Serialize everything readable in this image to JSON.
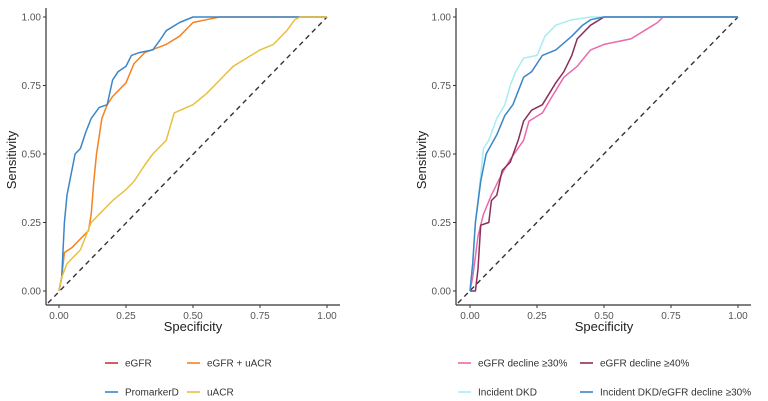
{
  "chart_data": [
    {
      "type": "line",
      "xlabel": "Specificity",
      "ylabel": "Sensitivity",
      "xlim": [
        0,
        1
      ],
      "ylim": [
        0,
        1
      ],
      "xticks": [
        "0.00",
        "0.25",
        "0.50",
        "0.75",
        "1.00"
      ],
      "yticks": [
        "0.00",
        "0.25",
        "0.50",
        "0.75",
        "1.00"
      ],
      "grid": false,
      "legend_position": "bottom",
      "reference_line": "diagonal dashed",
      "series": [
        {
          "name": "eGFR",
          "color": "#c8373a",
          "points": []
        },
        {
          "name": "eGFR + uACR",
          "color": "#f5821f",
          "points": [
            [
              0,
              0
            ],
            [
              0.01,
              0.05
            ],
            [
              0.02,
              0.14
            ],
            [
              0.05,
              0.16
            ],
            [
              0.08,
              0.19
            ],
            [
              0.11,
              0.22
            ],
            [
              0.12,
              0.28
            ],
            [
              0.13,
              0.4
            ],
            [
              0.14,
              0.5
            ],
            [
              0.16,
              0.63
            ],
            [
              0.18,
              0.68
            ],
            [
              0.2,
              0.71
            ],
            [
              0.25,
              0.76
            ],
            [
              0.28,
              0.83
            ],
            [
              0.32,
              0.87
            ],
            [
              0.4,
              0.9
            ],
            [
              0.45,
              0.93
            ],
            [
              0.5,
              0.98
            ],
            [
              0.55,
              0.99
            ],
            [
              0.6,
              1
            ],
            [
              1,
              1
            ]
          ]
        },
        {
          "name": "PromarkerD",
          "color": "#3b86c8",
          "points": [
            [
              0,
              0
            ],
            [
              0.01,
              0.05
            ],
            [
              0.02,
              0.25
            ],
            [
              0.03,
              0.35
            ],
            [
              0.05,
              0.45
            ],
            [
              0.06,
              0.5
            ],
            [
              0.08,
              0.52
            ],
            [
              0.1,
              0.58
            ],
            [
              0.12,
              0.63
            ],
            [
              0.15,
              0.67
            ],
            [
              0.18,
              0.68
            ],
            [
              0.2,
              0.77
            ],
            [
              0.22,
              0.8
            ],
            [
              0.25,
              0.82
            ],
            [
              0.27,
              0.86
            ],
            [
              0.3,
              0.87
            ],
            [
              0.35,
              0.88
            ],
            [
              0.38,
              0.92
            ],
            [
              0.4,
              0.95
            ],
            [
              0.45,
              0.98
            ],
            [
              0.5,
              1
            ],
            [
              1,
              1
            ]
          ]
        },
        {
          "name": "uACR",
          "color": "#e8c040",
          "points": [
            [
              0,
              0
            ],
            [
              0.01,
              0.05
            ],
            [
              0.03,
              0.1
            ],
            [
              0.08,
              0.15
            ],
            [
              0.12,
              0.25
            ],
            [
              0.15,
              0.28
            ],
            [
              0.2,
              0.33
            ],
            [
              0.25,
              0.37
            ],
            [
              0.28,
              0.4
            ],
            [
              0.32,
              0.46
            ],
            [
              0.35,
              0.5
            ],
            [
              0.4,
              0.55
            ],
            [
              0.43,
              0.65
            ],
            [
              0.5,
              0.68
            ],
            [
              0.55,
              0.72
            ],
            [
              0.6,
              0.77
            ],
            [
              0.65,
              0.82
            ],
            [
              0.7,
              0.85
            ],
            [
              0.75,
              0.88
            ],
            [
              0.8,
              0.9
            ],
            [
              0.85,
              0.95
            ],
            [
              0.88,
              0.99
            ],
            [
              0.9,
              1
            ],
            [
              1,
              1
            ]
          ]
        }
      ]
    },
    {
      "type": "line",
      "xlabel": "Specificity",
      "ylabel": "Sensitivity",
      "xlim": [
        0,
        1
      ],
      "ylim": [
        0,
        1
      ],
      "xticks": [
        "0.00",
        "0.25",
        "0.50",
        "0.75",
        "1.00"
      ],
      "yticks": [
        "0.00",
        "0.25",
        "0.50",
        "0.75",
        "1.00"
      ],
      "grid": false,
      "legend_position": "bottom",
      "reference_line": "diagonal dashed",
      "series": [
        {
          "name": "eGFR decline ≥30%",
          "color": "#e96aab",
          "points": [
            [
              0,
              0
            ],
            [
              0.01,
              0.05
            ],
            [
              0.03,
              0.2
            ],
            [
              0.05,
              0.28
            ],
            [
              0.08,
              0.35
            ],
            [
              0.12,
              0.43
            ],
            [
              0.15,
              0.48
            ],
            [
              0.2,
              0.55
            ],
            [
              0.22,
              0.62
            ],
            [
              0.27,
              0.65
            ],
            [
              0.3,
              0.7
            ],
            [
              0.35,
              0.78
            ],
            [
              0.4,
              0.82
            ],
            [
              0.45,
              0.88
            ],
            [
              0.5,
              0.9
            ],
            [
              0.6,
              0.92
            ],
            [
              0.65,
              0.95
            ],
            [
              0.7,
              0.98
            ],
            [
              0.72,
              1
            ],
            [
              1,
              1
            ]
          ]
        },
        {
          "name": "eGFR decline ≥40%",
          "color": "#8a2f57",
          "points": [
            [
              0,
              0
            ],
            [
              0.02,
              0
            ],
            [
              0.03,
              0.08
            ],
            [
              0.04,
              0.24
            ],
            [
              0.07,
              0.25
            ],
            [
              0.08,
              0.33
            ],
            [
              0.1,
              0.35
            ],
            [
              0.12,
              0.44
            ],
            [
              0.15,
              0.47
            ],
            [
              0.18,
              0.55
            ],
            [
              0.2,
              0.62
            ],
            [
              0.23,
              0.66
            ],
            [
              0.27,
              0.68
            ],
            [
              0.32,
              0.76
            ],
            [
              0.35,
              0.8
            ],
            [
              0.38,
              0.86
            ],
            [
              0.4,
              0.92
            ],
            [
              0.45,
              0.97
            ],
            [
              0.5,
              1
            ],
            [
              1,
              1
            ]
          ]
        },
        {
          "name": "Incident DKD",
          "color": "#a6eef0",
          "points": [
            [
              0,
              0
            ],
            [
              0.01,
              0.1
            ],
            [
              0.02,
              0.25
            ],
            [
              0.04,
              0.42
            ],
            [
              0.05,
              0.52
            ],
            [
              0.07,
              0.55
            ],
            [
              0.1,
              0.63
            ],
            [
              0.13,
              0.68
            ],
            [
              0.15,
              0.75
            ],
            [
              0.17,
              0.8
            ],
            [
              0.2,
              0.85
            ],
            [
              0.25,
              0.86
            ],
            [
              0.28,
              0.93
            ],
            [
              0.32,
              0.97
            ],
            [
              0.38,
              0.99
            ],
            [
              0.45,
              1
            ],
            [
              1,
              1
            ]
          ]
        },
        {
          "name": "Incident DKD/eGFR decline ≥30%",
          "color": "#3b86c8",
          "points": [
            [
              0,
              0
            ],
            [
              0.01,
              0.1
            ],
            [
              0.02,
              0.25
            ],
            [
              0.04,
              0.4
            ],
            [
              0.06,
              0.5
            ],
            [
              0.1,
              0.57
            ],
            [
              0.13,
              0.64
            ],
            [
              0.16,
              0.68
            ],
            [
              0.2,
              0.78
            ],
            [
              0.23,
              0.8
            ],
            [
              0.27,
              0.86
            ],
            [
              0.32,
              0.88
            ],
            [
              0.38,
              0.93
            ],
            [
              0.42,
              0.97
            ],
            [
              0.45,
              0.99
            ],
            [
              0.5,
              1
            ],
            [
              1,
              1
            ]
          ]
        }
      ]
    }
  ]
}
